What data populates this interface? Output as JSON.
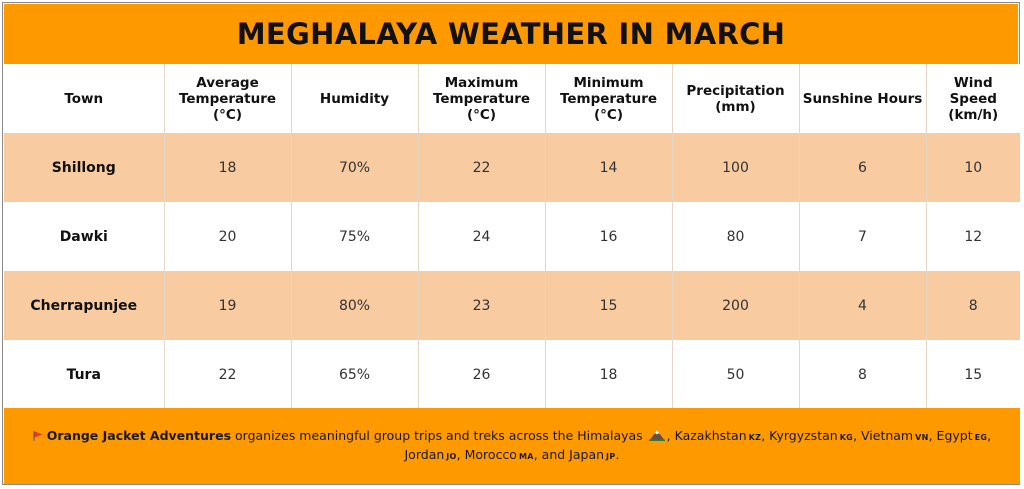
{
  "title": "MEGHALAYA WEATHER IN MARCH",
  "headers": {
    "town": "Town",
    "avg_temp": "Average Temperature (°C)",
    "humidity": "Humidity",
    "max_temp": "Maximum Temperature (°C)",
    "min_temp": "Minimum Temperature (°C)",
    "precip": "Precipitation (mm)",
    "sunshine": "Sunshine Hours",
    "wind": "Wind Speed (km/h)"
  },
  "rows": [
    {
      "town": "Shillong",
      "avg_temp": "18",
      "humidity": "70%",
      "max_temp": "22",
      "min_temp": "14",
      "precip": "100",
      "sunshine": "6",
      "wind": "10"
    },
    {
      "town": "Dawki",
      "avg_temp": "20",
      "humidity": "75%",
      "max_temp": "24",
      "min_temp": "16",
      "precip": "80",
      "sunshine": "7",
      "wind": "12"
    },
    {
      "town": "Cherrapunjee",
      "avg_temp": "19",
      "humidity": "80%",
      "max_temp": "23",
      "min_temp": "15",
      "precip": "200",
      "sunshine": "4",
      "wind": "8"
    },
    {
      "town": "Tura",
      "avg_temp": "22",
      "humidity": "65%",
      "max_temp": "26",
      "min_temp": "18",
      "precip": "50",
      "sunshine": "8",
      "wind": "15"
    }
  ],
  "footer": {
    "brand": "Orange Jacket Adventures",
    "text1": " organizes meaningful group trips and treks across the Himalayas",
    "kz_name": ", Kazakhstan",
    "kz_code": "KZ",
    "kg_name": ", Kyrgyzstan",
    "kg_code": "KG",
    "vn_name": ", Vietnam",
    "vn_code": "VN",
    "eg_name": ", Egypt",
    "eg_code": "EG",
    "jo_name": ", Jordan",
    "jo_code": "JO",
    "ma_name": ", Morocco",
    "ma_code": "MA",
    "jp_name": ", and Japan",
    "jp_code": "JP",
    "end": "."
  },
  "colors": {
    "accent": "#ff9900",
    "row_highlight": "#f8cba0",
    "flag": "#e53935"
  },
  "icons": {
    "flag": "triangular-flag-icon",
    "mountain": "snow-capped-mountain-icon"
  }
}
